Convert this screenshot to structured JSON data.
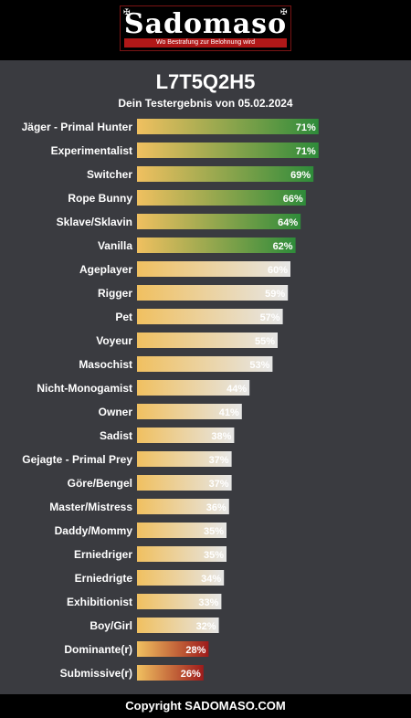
{
  "header": {
    "logo_text": "Sadomaso",
    "logo_tagline": "Wo Bestrafung zur Belohnung wird"
  },
  "title": "L7T5Q2H5",
  "subtitle": "Dein Testergebnis von 05.02.2024",
  "footer": "Copyright SADOMASO.COM",
  "colors": {
    "bar_start": "#f0c060",
    "high_end": "#2e8b3a",
    "mid_end": "#e6e6e6",
    "low_end": "#9e1b1b"
  },
  "chart_data": {
    "type": "bar",
    "orientation": "horizontal",
    "categories": [
      "Jäger - Primal Hunter",
      "Experimentalist",
      "Switcher",
      "Rope Bunny",
      "Sklave/Sklavin",
      "Vanilla",
      "Ageplayer",
      "Rigger",
      "Pet",
      "Voyeur",
      "Masochist",
      "Nicht-Monogamist",
      "Owner",
      "Sadist",
      "Gejagte - Primal Prey",
      "Göre/Bengel",
      "Master/Mistress",
      "Daddy/Mommy",
      "Erniedriger",
      "Erniedrigte",
      "Exhibitionist",
      "Boy/Girl",
      "Dominante(r)",
      "Submissive(r)"
    ],
    "values": [
      71,
      71,
      69,
      66,
      64,
      62,
      60,
      59,
      57,
      55,
      53,
      44,
      41,
      38,
      37,
      37,
      36,
      35,
      35,
      34,
      33,
      32,
      28,
      26
    ],
    "labels": [
      "71%",
      "71%",
      "69%",
      "66%",
      "64%",
      "62%",
      "60%",
      "59%",
      "57%",
      "55%",
      "53%",
      "44%",
      "41%",
      "38%",
      "37%",
      "37%",
      "36%",
      "35%",
      "35%",
      "34%",
      "33%",
      "32%",
      "28%",
      "26%"
    ],
    "groups": [
      "high",
      "high",
      "high",
      "high",
      "high",
      "high",
      "mid",
      "mid",
      "mid",
      "mid",
      "mid",
      "mid",
      "mid",
      "mid",
      "mid",
      "mid",
      "mid",
      "mid",
      "mid",
      "mid",
      "mid",
      "mid",
      "low",
      "low"
    ],
    "xlim": [
      0,
      100
    ]
  }
}
